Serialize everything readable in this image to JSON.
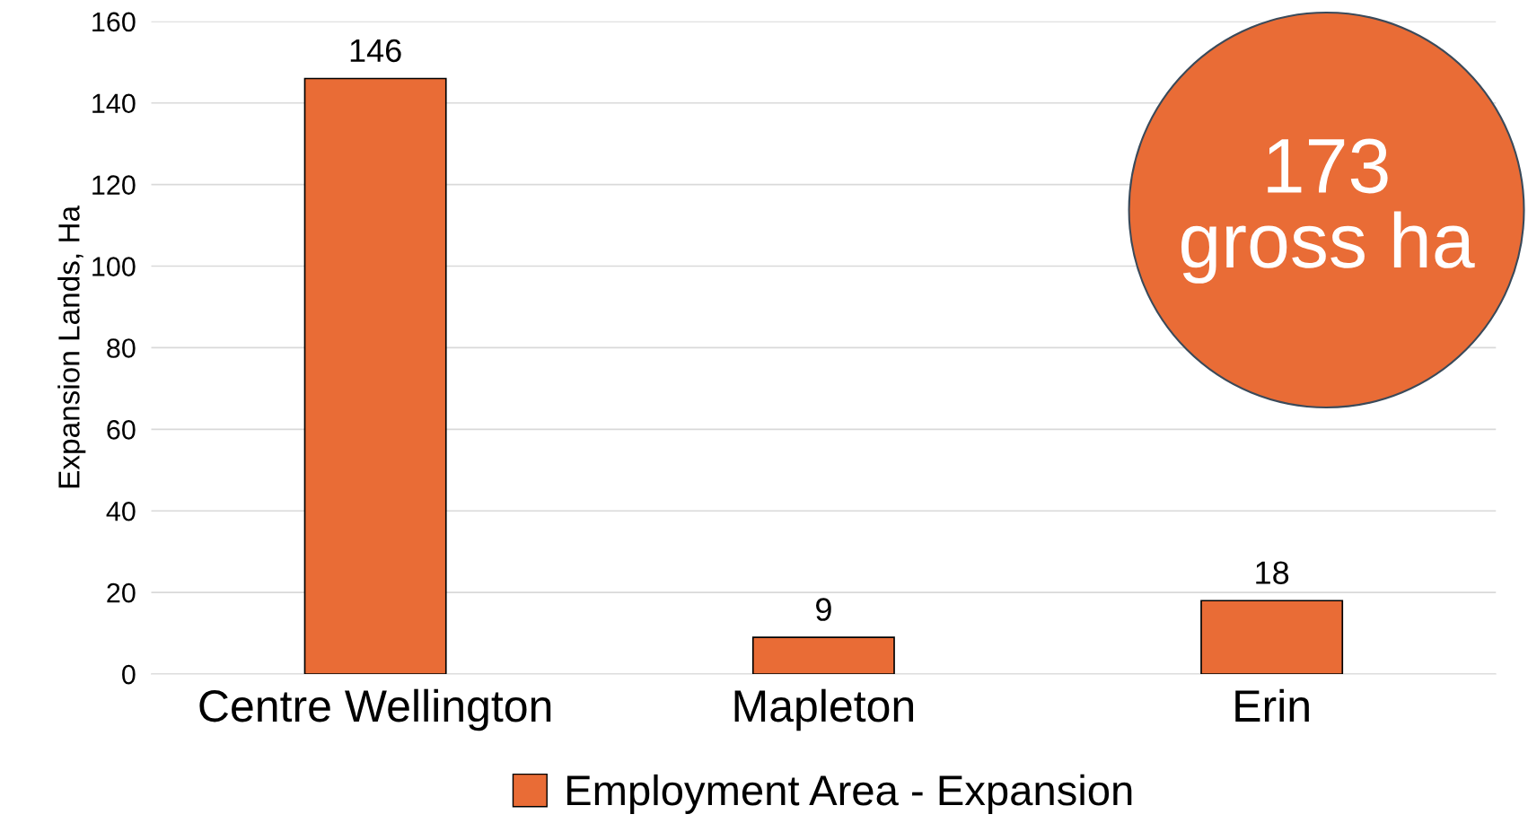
{
  "chart_data": {
    "type": "bar",
    "ylabel": "Expansion Lands, Ha",
    "categories": [
      "Centre Wellington",
      "Mapleton",
      "Erin"
    ],
    "series": [
      {
        "name": "Employment Area - Expansion",
        "color": "#e96c36",
        "values": [
          146,
          9,
          18
        ]
      }
    ],
    "ylim": [
      0,
      160
    ],
    "yticks": [
      0,
      20,
      40,
      60,
      80,
      100,
      120,
      140,
      160
    ],
    "grid": "y",
    "legend": "bottom",
    "data_labels": true,
    "annotations": [
      "173\ngross ha"
    ]
  }
}
